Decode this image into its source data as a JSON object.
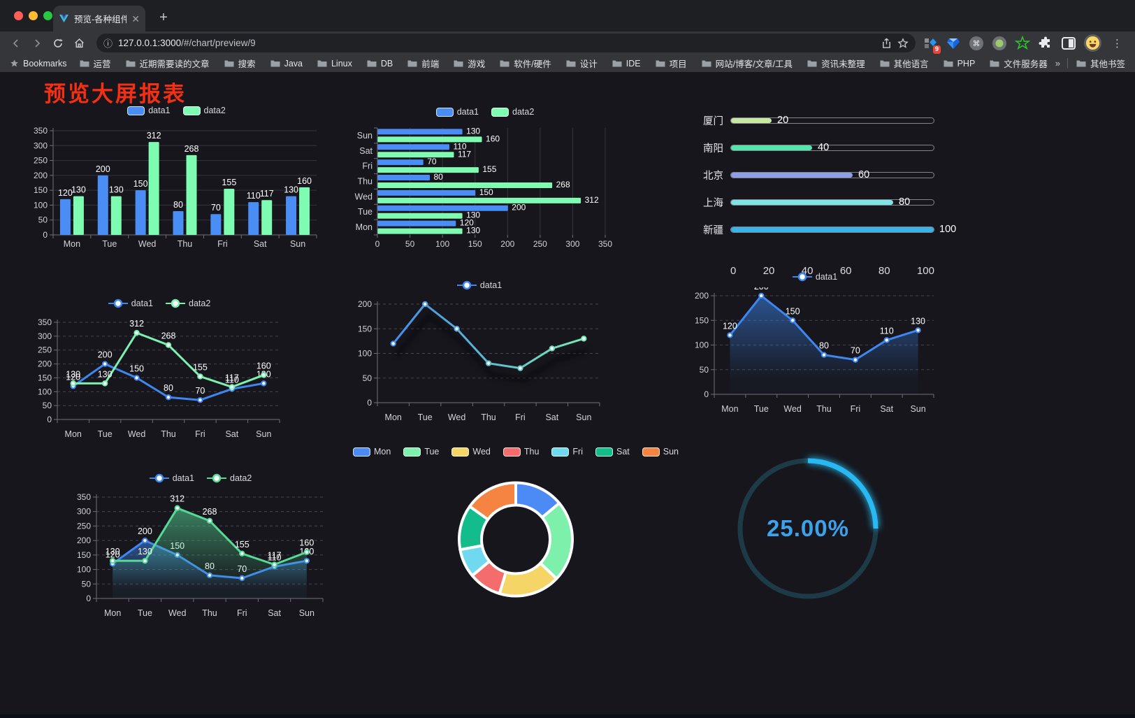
{
  "browser": {
    "tab_title": "预览-各种组件",
    "tab_close": "✕",
    "new_tab": "+",
    "url_info": "ⓘ",
    "url_host": "127.0.0.1:3000",
    "url_path": "/#/chart/preview/9",
    "ext_badge": "9",
    "menu_dots": "⋮",
    "bookmarks_root": "Bookmarks",
    "bookmarks": [
      "运营",
      "近期需要读的文章",
      "搜索",
      "Java",
      "Linux",
      "DB",
      "前端",
      "游戏",
      "软件/硬件",
      "设计",
      "IDE",
      "项目",
      "网站/博客/文章/工具",
      "资讯未整理",
      "其他语言",
      "PHP",
      "文件服务器"
    ],
    "overflow_chevron": "»",
    "other_bookmarks": "其他书签"
  },
  "page": {
    "title": "预览大屏报表"
  },
  "chart_data": [
    {
      "id": "c1",
      "type": "bar",
      "legend": [
        "data1",
        "data2"
      ],
      "categories": [
        "Mon",
        "Tue",
        "Wed",
        "Thu",
        "Fri",
        "Sat",
        "Sun"
      ],
      "series": [
        {
          "name": "data1",
          "color": "#4a8ef5",
          "values": [
            120,
            200,
            150,
            80,
            70,
            110,
            130
          ]
        },
        {
          "name": "data2",
          "color": "#7dfcb2",
          "values": [
            130,
            130,
            312,
            268,
            155,
            117,
            160
          ]
        }
      ],
      "ylim": [
        0,
        350
      ],
      "ystep": 50,
      "grid": "on"
    },
    {
      "id": "c2",
      "type": "bar-horizontal",
      "legend": [
        "data1",
        "data2"
      ],
      "categories": [
        "Mon",
        "Tue",
        "Wed",
        "Thu",
        "Fri",
        "Sat",
        "Sun"
      ],
      "series": [
        {
          "name": "data1",
          "color": "#4a8ef5",
          "values": [
            120,
            200,
            150,
            80,
            70,
            110,
            130
          ]
        },
        {
          "name": "data2",
          "color": "#7dfcb2",
          "values": [
            130,
            130,
            312,
            268,
            155,
            117,
            160
          ]
        }
      ],
      "xlim": [
        0,
        350
      ],
      "xstep": 50,
      "grid": "on"
    },
    {
      "id": "c3",
      "type": "progress",
      "rows": [
        {
          "label": "厦门",
          "value": 20,
          "color": "#c7e8a0"
        },
        {
          "label": "南阳",
          "value": 40,
          "color": "#55e6ab"
        },
        {
          "label": "北京",
          "value": 60,
          "color": "#8f9ee8"
        },
        {
          "label": "上海",
          "value": 80,
          "color": "#7de4e6"
        },
        {
          "label": "新疆",
          "value": 100,
          "color": "#38b3e8"
        }
      ],
      "xlim": [
        0,
        100
      ],
      "xticks": [
        0,
        20,
        40,
        60,
        80,
        100
      ]
    },
    {
      "id": "c4",
      "type": "line",
      "labels": true,
      "legend": [
        "data1",
        "data2"
      ],
      "categories": [
        "Mon",
        "Tue",
        "Wed",
        "Thu",
        "Fri",
        "Sat",
        "Sun"
      ],
      "series": [
        {
          "name": "data1",
          "color": "#3e86f0",
          "values": [
            120,
            200,
            150,
            80,
            70,
            110,
            130
          ]
        },
        {
          "name": "data2",
          "color": "#7df0b0",
          "values": [
            130,
            130,
            312,
            268,
            155,
            117,
            160
          ]
        }
      ],
      "ylim": [
        0,
        350
      ],
      "ystep": 50,
      "grid": "on"
    },
    {
      "id": "c5",
      "type": "line",
      "labels": false,
      "legend": [
        "data1"
      ],
      "shadow": true,
      "categories": [
        "Mon",
        "Tue",
        "Wed",
        "Thu",
        "Fri",
        "Sat",
        "Sun"
      ],
      "series": [
        {
          "name": "data1",
          "color": "#3e86f0",
          "gradient": [
            "#3e86f0",
            "#7df0b0"
          ],
          "values": [
            120,
            200,
            150,
            80,
            70,
            110,
            130
          ]
        }
      ],
      "ylim": [
        0,
        200
      ],
      "ystep": 50,
      "grid": "on"
    },
    {
      "id": "c6",
      "type": "area",
      "labels": true,
      "legend": [
        "data1"
      ],
      "categories": [
        "Mon",
        "Tue",
        "Wed",
        "Thu",
        "Fri",
        "Sat",
        "Sun"
      ],
      "series": [
        {
          "name": "data1",
          "color": "#3e86f0",
          "values": [
            120,
            200,
            150,
            80,
            70,
            110,
            130
          ]
        }
      ],
      "ylim": [
        0,
        200
      ],
      "ystep": 50,
      "grid": "on"
    },
    {
      "id": "c7",
      "type": "area",
      "labels": true,
      "legend": [
        "data1",
        "data2"
      ],
      "categories": [
        "Mon",
        "Tue",
        "Wed",
        "Thu",
        "Fri",
        "Sat",
        "Sun"
      ],
      "series": [
        {
          "name": "data1",
          "color": "#3e86f0",
          "values": [
            120,
            200,
            150,
            80,
            70,
            110,
            130
          ]
        },
        {
          "name": "data2",
          "color": "#57d998",
          "values": [
            130,
            130,
            312,
            268,
            155,
            117,
            160
          ]
        }
      ],
      "ylim": [
        0,
        350
      ],
      "ystep": 50,
      "grid": "on"
    },
    {
      "id": "c8",
      "type": "pie",
      "labels": [
        "Mon",
        "Tue",
        "Wed",
        "Thu",
        "Fri",
        "Sat",
        "Sun"
      ],
      "values": [
        120,
        200,
        150,
        80,
        70,
        110,
        130
      ],
      "colors": [
        "#4c8bf5",
        "#7df0ab",
        "#f5d565",
        "#f56c6c",
        "#70d9f0",
        "#12bd8b",
        "#f58442"
      ],
      "inner_radius": 49,
      "outer_radius": 81
    },
    {
      "id": "c9",
      "type": "gauge",
      "value": 25,
      "display": "25.00%",
      "color": "#29b9f2",
      "track": "#1d3b46",
      "text_color": "#3da2ec"
    }
  ]
}
